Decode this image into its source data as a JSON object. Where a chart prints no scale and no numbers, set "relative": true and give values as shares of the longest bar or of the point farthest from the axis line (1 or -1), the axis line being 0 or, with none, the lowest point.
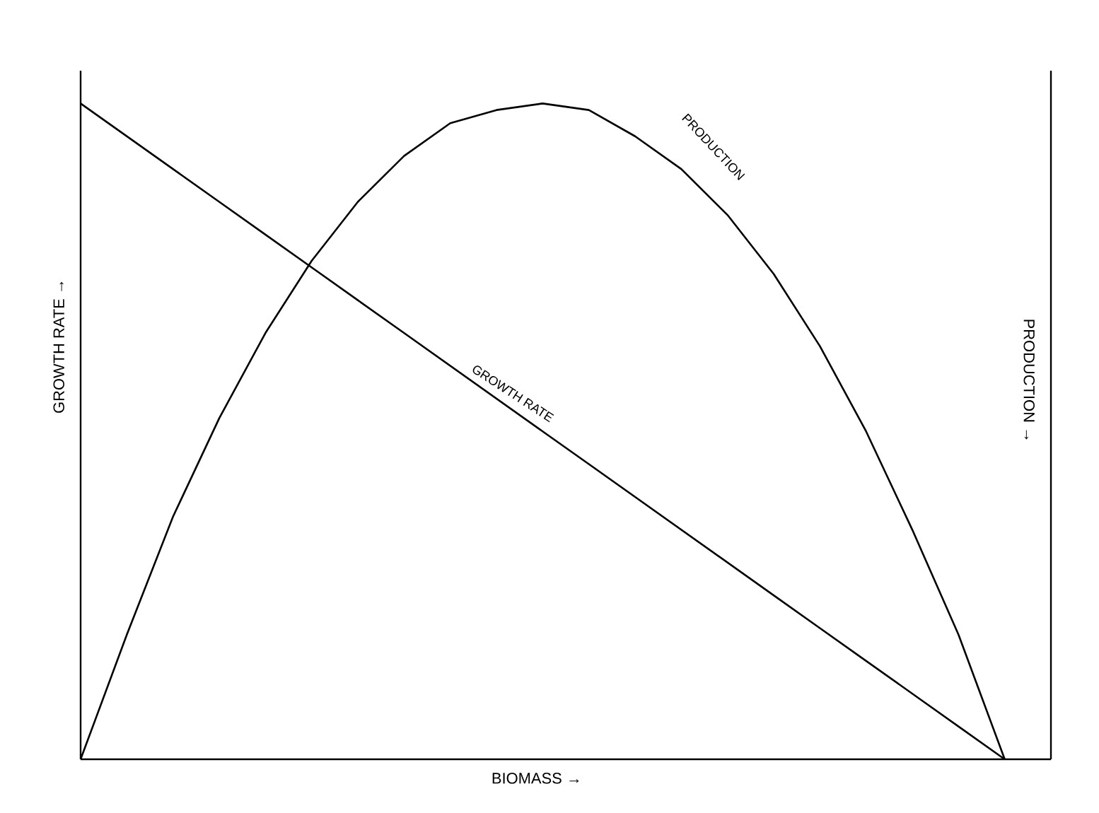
{
  "chart_data": {
    "type": "line",
    "relative": true,
    "xlabel": "BIOMASS →",
    "ylabel": "GROWTH RATE →",
    "y2label": "PRODUCTION →",
    "categories": [
      null,
      null,
      null,
      null,
      null,
      null,
      null,
      null,
      null,
      null,
      null,
      null,
      null,
      null,
      null,
      null,
      null,
      null,
      null,
      null,
      null,
      null
    ],
    "series": [
      {
        "name": "GROWTH RATE",
        "color": "#000000",
        "values": [
          1,
          0.95,
          0.9,
          0.85,
          0.8,
          0.75,
          0.7,
          0.65,
          0.6,
          0.55,
          0.5,
          0.45,
          0.4,
          0.35,
          0.3,
          0.25,
          0.2,
          0.15,
          0.1,
          0.05,
          0,
          null
        ]
      },
      {
        "name": "PRODUCTION",
        "color": "#000000",
        "values": [
          0,
          0.19,
          0.37,
          0.52,
          0.65,
          0.76,
          0.85,
          0.92,
          0.97,
          0.99,
          1,
          0.99,
          0.95,
          0.9,
          0.83,
          0.74,
          0.63,
          0.5,
          0.35,
          0.19,
          0,
          null
        ]
      }
    ],
    "legend": false,
    "marker": "none",
    "line_style": "solid"
  }
}
